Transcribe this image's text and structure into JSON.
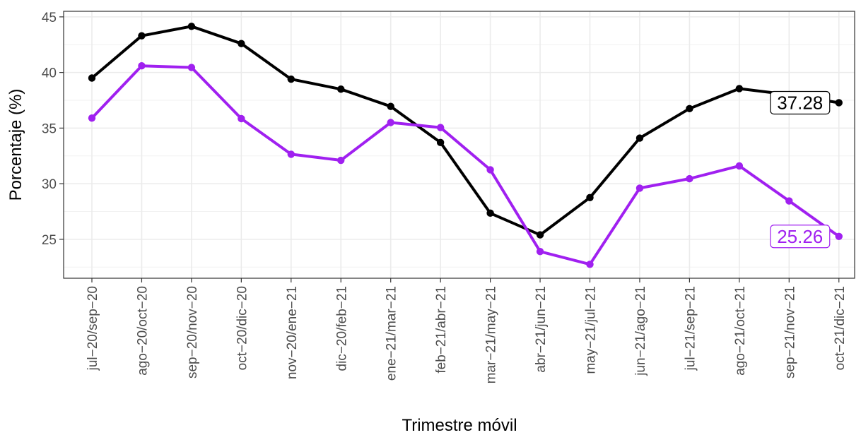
{
  "chart_data": {
    "type": "line",
    "title": "",
    "xlabel": "Trimestre móvil",
    "ylabel": "Porcentaje (%)",
    "ylim": [
      21.5,
      45.5
    ],
    "y_ticks": [
      25,
      30,
      35,
      40,
      45
    ],
    "y_tick_labels": [
      "25",
      "30",
      "35",
      "40",
      "45"
    ],
    "grid": true,
    "legend": "none",
    "categories": [
      "jul−20/sep−20",
      "ago−20/oct−20",
      "sep−20/nov−20",
      "oct−20/dic−20",
      "nov−20/ene−21",
      "dic−20/feb−21",
      "ene−21/mar−21",
      "feb−21/abr−21",
      "mar−21/may−21",
      "abr−21/jun−21",
      "may−21/jul−21",
      "jun−21/ago−21",
      "jul−21/sep−21",
      "ago−21/oct−21",
      "sep−21/nov−21",
      "oct−21/dic−21"
    ],
    "series": [
      {
        "color": "#000000",
        "values": [
          39.5,
          43.3,
          44.15,
          42.6,
          39.4,
          38.5,
          36.95,
          33.7,
          27.35,
          25.4,
          28.75,
          34.1,
          36.75,
          38.55,
          38.0,
          37.28
        ],
        "end_label": "37.28"
      },
      {
        "color": "#a020f0",
        "values": [
          35.9,
          40.6,
          40.45,
          35.85,
          32.65,
          32.1,
          35.5,
          35.05,
          31.25,
          23.9,
          22.75,
          29.6,
          30.45,
          31.6,
          28.45,
          25.26
        ],
        "end_label": "25.26"
      }
    ]
  }
}
